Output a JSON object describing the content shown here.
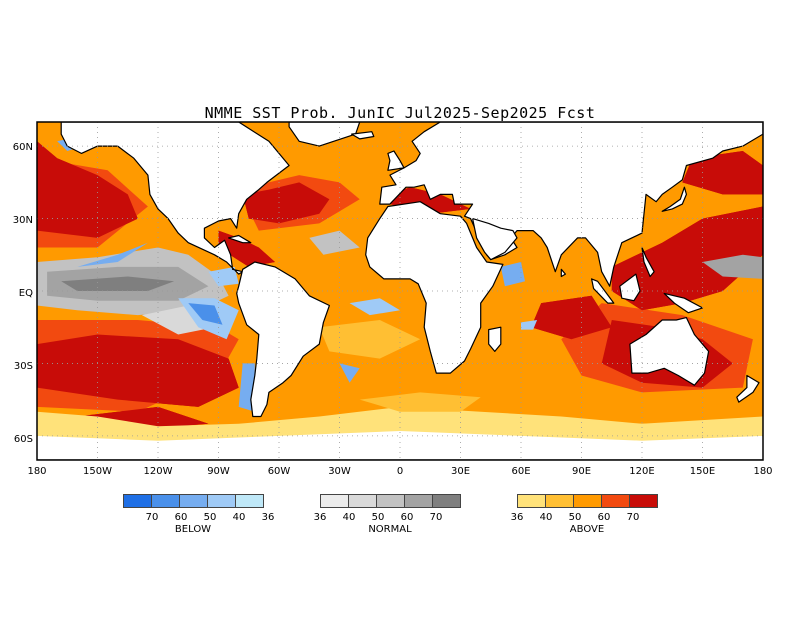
{
  "title": "NMME SST Prob. JunIC  Jul2025-Sep2025 Fcst",
  "axes": {
    "lat_labels": [
      "60N",
      "30N",
      "EQ",
      "30S",
      "60S"
    ],
    "lon_labels": [
      "180",
      "150W",
      "120W",
      "90W",
      "60W",
      "30W",
      "0",
      "30E",
      "60E",
      "90E",
      "120E",
      "150E",
      "180"
    ]
  },
  "colors": {
    "below": [
      "#1f6fe5",
      "#4a90ea",
      "#76adf0",
      "#9fcaf6",
      "#bfe8f8"
    ],
    "normal": [
      "#ececec",
      "#d9d9d9",
      "#c2c2c2",
      "#a3a3a3",
      "#7f7f7f"
    ],
    "above": [
      "#ffe27a",
      "#ffbf33",
      "#ff9a00",
      "#f24a10",
      "#c80c08"
    ],
    "land": "#ffffff",
    "coast": "#000000"
  },
  "legend": [
    {
      "name": "BELOW",
      "ticks": [
        "70",
        "60",
        "50",
        "40",
        "36"
      ]
    },
    {
      "name": "NORMAL",
      "ticks": [
        "36",
        "40",
        "50",
        "60",
        "70"
      ]
    },
    {
      "name": "ABOVE",
      "ticks": [
        "36",
        "40",
        "50",
        "60",
        "70"
      ]
    }
  ]
}
